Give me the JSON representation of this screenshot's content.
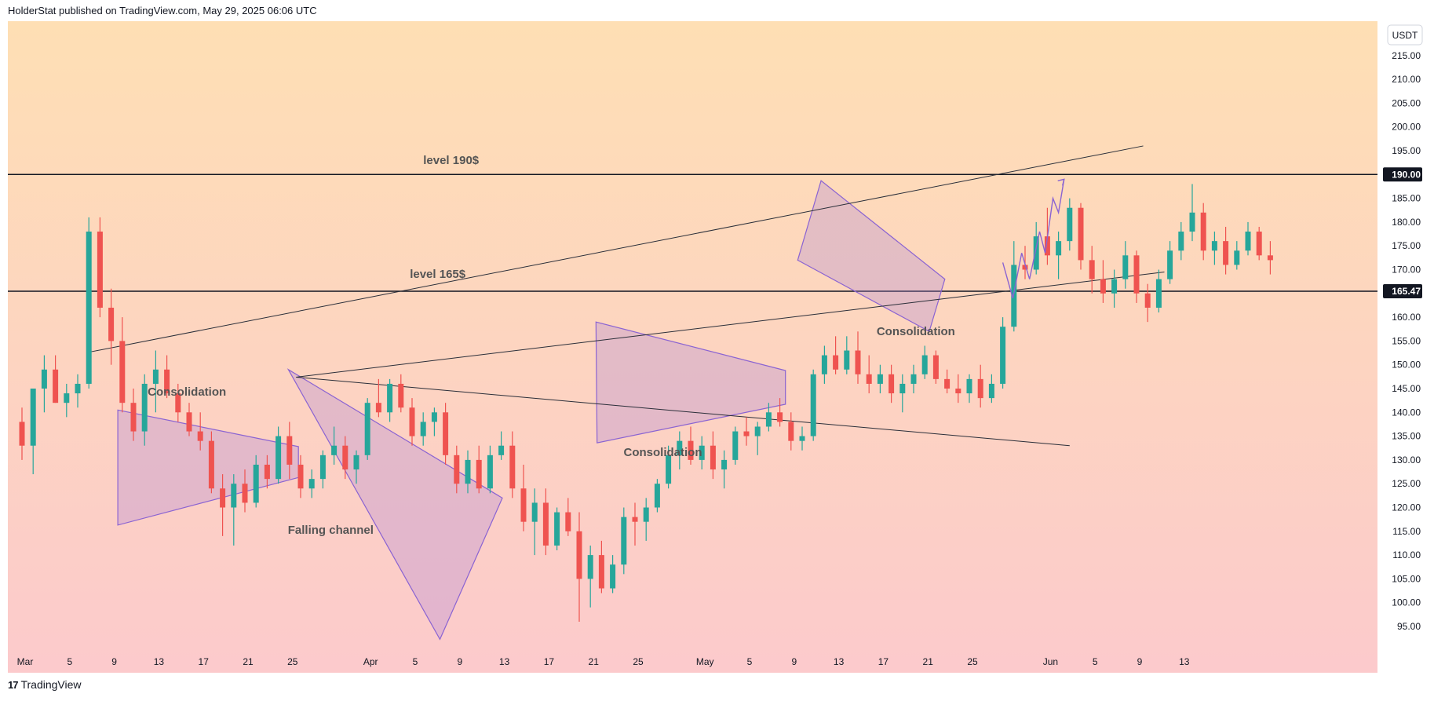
{
  "header": {
    "published": "HolderStat published on TradingView.com, May 29, 2025 06:06 UTC"
  },
  "footer": {
    "logo": "17",
    "brand": "TradingView"
  },
  "colors": {
    "bull": "#26a69a",
    "bear": "#ef5350",
    "shape_fill": "rgba(170,130,215,0.30)",
    "shape_stroke": "#8a63d2",
    "line": "#2a2e39"
  },
  "chart_data": {
    "type": "candlestick",
    "currency": "USDT",
    "y_ticks": [
      95,
      100,
      105,
      110,
      115,
      120,
      125,
      130,
      135,
      140,
      145,
      150,
      155,
      160,
      165,
      170,
      175,
      180,
      185,
      190,
      195,
      200,
      205,
      210,
      215
    ],
    "ylim": [
      91.5,
      218
    ],
    "x_ticks": [
      {
        "label": "Mar",
        "day": 0
      },
      {
        "label": "5",
        "day": 4
      },
      {
        "label": "9",
        "day": 8
      },
      {
        "label": "13",
        "day": 12
      },
      {
        "label": "17",
        "day": 16
      },
      {
        "label": "21",
        "day": 20
      },
      {
        "label": "25",
        "day": 24
      },
      {
        "label": "Apr",
        "day": 31
      },
      {
        "label": "5",
        "day": 35
      },
      {
        "label": "9",
        "day": 39
      },
      {
        "label": "13",
        "day": 43
      },
      {
        "label": "17",
        "day": 47
      },
      {
        "label": "21",
        "day": 51
      },
      {
        "label": "25",
        "day": 55
      },
      {
        "label": "May",
        "day": 61
      },
      {
        "label": "5",
        "day": 65
      },
      {
        "label": "9",
        "day": 69
      },
      {
        "label": "13",
        "day": 73
      },
      {
        "label": "17",
        "day": 77
      },
      {
        "label": "21",
        "day": 81
      },
      {
        "label": "25",
        "day": 85
      },
      {
        "label": "Jun",
        "day": 92
      },
      {
        "label": "5",
        "day": 96
      },
      {
        "label": "9",
        "day": 100
      },
      {
        "label": "13",
        "day": 104
      }
    ],
    "price_labels": [
      {
        "value": 190.0,
        "text": "190.00"
      },
      {
        "value": 165.47,
        "text": "165.47"
      }
    ],
    "horizontal_levels": [
      190.0,
      165.47
    ],
    "level_texts": [
      {
        "text": "level 190$",
        "day": 38.5,
        "price": 192.2
      },
      {
        "text": "level 165$",
        "day": 37.3,
        "price": 168.3
      }
    ],
    "pattern_labels": [
      {
        "text": "Consolidation",
        "day": 14.8,
        "price": 143.5
      },
      {
        "text": "Falling channel",
        "day": 27.7,
        "price": 114.5
      },
      {
        "text": "Consolidation",
        "day": 57.5,
        "price": 130.8
      },
      {
        "text": "Consolidation",
        "day": 80.2,
        "price": 156.2
      }
    ],
    "pattern_shapes": [
      {
        "name": "consolidation-triangle-1",
        "points": [
          [
            8.6,
            140.5
          ],
          [
            24.8,
            132.8
          ],
          [
            24.8,
            126.3
          ],
          [
            8.6,
            116.3
          ]
        ]
      },
      {
        "name": "falling-channel",
        "points": [
          [
            23.9,
            149.0
          ],
          [
            37.5,
            92.3
          ],
          [
            43.1,
            122.0
          ]
        ]
      },
      {
        "name": "consolidation-triangle-2",
        "points": [
          [
            51.5,
            159.0
          ],
          [
            68.5,
            148.8
          ],
          [
            68.5,
            141.7
          ],
          [
            51.6,
            133.6
          ]
        ]
      },
      {
        "name": "consolidation-channel-3",
        "points": [
          [
            69.6,
            172.0
          ],
          [
            71.7,
            188.7
          ],
          [
            82.8,
            168.0
          ],
          [
            81.4,
            157.0
          ]
        ]
      }
    ],
    "trend_lines": [
      {
        "name": "upper-trendline",
        "from": [
          5.9,
          152.6
        ],
        "to": [
          100.6,
          196.0
        ]
      },
      {
        "name": "middle-trendline",
        "from": [
          24.6,
          147.4
        ],
        "to": [
          102.5,
          169.5
        ]
      },
      {
        "name": "lower-trendline",
        "from": [
          24.6,
          147.4
        ],
        "to": [
          94.0,
          133.0
        ]
      }
    ],
    "projection": [
      [
        88.0,
        171.5
      ],
      [
        88.9,
        164.0
      ],
      [
        89.7,
        173.5
      ],
      [
        90.4,
        168.0
      ],
      [
        91.3,
        178.0
      ],
      [
        91.8,
        173.5
      ],
      [
        92.5,
        185.0
      ],
      [
        93.0,
        182.0
      ],
      [
        93.5,
        189.0
      ]
    ],
    "candles": [
      [
        138.0,
        141.0,
        130.0,
        133.0
      ],
      [
        133.0,
        145.0,
        127.0,
        145.0
      ],
      [
        145.0,
        152.0,
        140.0,
        149.0
      ],
      [
        149.0,
        152.0,
        142.0,
        142.0
      ],
      [
        142.0,
        146.0,
        139.0,
        144.0
      ],
      [
        144.0,
        148.0,
        141.0,
        146.0
      ],
      [
        146.0,
        181.0,
        145.0,
        178.0
      ],
      [
        178.0,
        181.0,
        160.0,
        162.0
      ],
      [
        162.0,
        166.0,
        150.0,
        155.0
      ],
      [
        155.0,
        160.0,
        140.0,
        142.0
      ],
      [
        142.0,
        145.0,
        134.0,
        136.0
      ],
      [
        136.0,
        148.0,
        133.0,
        146.0
      ],
      [
        146.0,
        153.0,
        140.0,
        149.0
      ],
      [
        149.0,
        152.0,
        143.0,
        144.0
      ],
      [
        144.0,
        146.0,
        138.0,
        140.0
      ],
      [
        140.0,
        142.0,
        135.0,
        136.0
      ],
      [
        136.0,
        140.0,
        132.0,
        134.0
      ],
      [
        134.0,
        136.0,
        123.0,
        124.0
      ],
      [
        124.0,
        127.0,
        114.0,
        120.0
      ],
      [
        120.0,
        127.0,
        112.0,
        125.0
      ],
      [
        125.0,
        128.0,
        119.0,
        121.0
      ],
      [
        121.0,
        131.0,
        120.0,
        129.0
      ],
      [
        129.0,
        131.0,
        124.0,
        126.0
      ],
      [
        126.0,
        137.0,
        125.0,
        135.0
      ],
      [
        135.0,
        138.0,
        126.0,
        129.0
      ],
      [
        129.0,
        131.0,
        122.0,
        124.0
      ],
      [
        124.0,
        128.0,
        122.0,
        126.0
      ],
      [
        126.0,
        132.0,
        124.0,
        131.0
      ],
      [
        131.0,
        137.0,
        129.0,
        133.0
      ],
      [
        133.0,
        135.0,
        126.0,
        128.0
      ],
      [
        128.0,
        132.0,
        125.0,
        131.0
      ],
      [
        131.0,
        143.0,
        130.0,
        142.0
      ],
      [
        142.0,
        147.0,
        139.0,
        140.0
      ],
      [
        140.0,
        147.0,
        138.0,
        146.0
      ],
      [
        146.0,
        148.0,
        140.0,
        141.0
      ],
      [
        141.0,
        143.0,
        133.0,
        135.0
      ],
      [
        135.0,
        140.0,
        133.0,
        138.0
      ],
      [
        138.0,
        141.0,
        135.0,
        140.0
      ],
      [
        140.0,
        142.0,
        129.0,
        131.0
      ],
      [
        131.0,
        133.0,
        123.0,
        125.0
      ],
      [
        125.0,
        132.0,
        123.0,
        130.0
      ],
      [
        130.0,
        133.0,
        123.0,
        124.0
      ],
      [
        124.0,
        133.0,
        123.0,
        131.0
      ],
      [
        131.0,
        136.0,
        130.0,
        133.0
      ],
      [
        133.0,
        136.0,
        122.0,
        124.0
      ],
      [
        124.0,
        129.0,
        115.0,
        117.0
      ],
      [
        117.0,
        124.0,
        110.0,
        121.0
      ],
      [
        121.0,
        124.0,
        110.0,
        112.0
      ],
      [
        112.0,
        120.0,
        111.0,
        119.0
      ],
      [
        119.0,
        122.0,
        114.0,
        115.0
      ],
      [
        115.0,
        119.0,
        96.0,
        105.0
      ],
      [
        105.0,
        112.0,
        99.0,
        110.0
      ],
      [
        110.0,
        113.0,
        102.0,
        103.0
      ],
      [
        103.0,
        110.0,
        102.0,
        108.0
      ],
      [
        108.0,
        120.0,
        106.0,
        118.0
      ],
      [
        118.0,
        121.0,
        112.0,
        117.0
      ],
      [
        117.0,
        122.0,
        113.0,
        120.0
      ],
      [
        120.0,
        126.0,
        119.0,
        125.0
      ],
      [
        125.0,
        133.0,
        124.0,
        131.0
      ],
      [
        131.0,
        136.0,
        128.0,
        134.0
      ],
      [
        134.0,
        137.0,
        129.0,
        130.0
      ],
      [
        130.0,
        135.0,
        128.0,
        133.0
      ],
      [
        133.0,
        136.0,
        126.0,
        128.0
      ],
      [
        128.0,
        132.0,
        124.0,
        130.0
      ],
      [
        130.0,
        137.0,
        129.0,
        136.0
      ],
      [
        136.0,
        139.0,
        133.0,
        135.0
      ],
      [
        135.0,
        138.0,
        131.0,
        137.0
      ],
      [
        137.0,
        142.0,
        136.0,
        140.0
      ],
      [
        140.0,
        143.0,
        137.0,
        138.0
      ],
      [
        138.0,
        140.0,
        132.0,
        134.0
      ],
      [
        134.0,
        137.0,
        132.0,
        135.0
      ],
      [
        135.0,
        149.0,
        134.0,
        148.0
      ],
      [
        148.0,
        154.0,
        146.0,
        152.0
      ],
      [
        152.0,
        156.0,
        148.0,
        149.0
      ],
      [
        149.0,
        156.0,
        148.0,
        153.0
      ],
      [
        153.0,
        157.0,
        146.0,
        148.0
      ],
      [
        148.0,
        152.0,
        144.0,
        146.0
      ],
      [
        146.0,
        150.0,
        144.0,
        148.0
      ],
      [
        148.0,
        150.0,
        142.0,
        144.0
      ],
      [
        144.0,
        148.0,
        140.0,
        146.0
      ],
      [
        146.0,
        150.0,
        144.0,
        148.0
      ],
      [
        148.0,
        154.0,
        147.0,
        152.0
      ],
      [
        152.0,
        153.0,
        146.0,
        147.0
      ],
      [
        147.0,
        149.0,
        144.0,
        145.0
      ],
      [
        145.0,
        148.0,
        142.0,
        144.0
      ],
      [
        144.0,
        148.0,
        142.0,
        147.0
      ],
      [
        147.0,
        150.0,
        141.0,
        143.0
      ],
      [
        143.0,
        148.0,
        142.0,
        146.0
      ],
      [
        146.0,
        160.0,
        145.0,
        158.0
      ],
      [
        158.0,
        176.0,
        157.0,
        171.0
      ],
      [
        171.0,
        175.0,
        168.0,
        170.0
      ],
      [
        170.0,
        180.0,
        169.0,
        177.0
      ],
      [
        177.0,
        183.0,
        171.0,
        173.0
      ],
      [
        173.0,
        178.0,
        168.0,
        176.0
      ],
      [
        176.0,
        185.0,
        174.0,
        183.0
      ],
      [
        183.0,
        184.0,
        170.0,
        172.0
      ],
      [
        172.0,
        175.0,
        165.0,
        168.0
      ],
      [
        168.0,
        172.0,
        163.0,
        165.0
      ],
      [
        165.0,
        170.0,
        162.0,
        168.0
      ],
      [
        168.0,
        176.0,
        166.0,
        173.0
      ],
      [
        173.0,
        174.0,
        163.0,
        165.0
      ],
      [
        165.0,
        167.0,
        159.0,
        162.0
      ],
      [
        162.0,
        170.0,
        161.0,
        168.0
      ],
      [
        168.0,
        176.0,
        167.0,
        174.0
      ],
      [
        174.0,
        180.0,
        172.0,
        178.0
      ],
      [
        178.0,
        188.0,
        176.0,
        182.0
      ],
      [
        182.0,
        184.0,
        172.0,
        174.0
      ],
      [
        174.0,
        178.0,
        171.0,
        176.0
      ],
      [
        176.0,
        179.0,
        169.0,
        171.0
      ],
      [
        171.0,
        176.0,
        170.0,
        174.0
      ],
      [
        174.0,
        180.0,
        173.0,
        178.0
      ],
      [
        178.0,
        179.0,
        172.0,
        173.0
      ],
      [
        173.0,
        176.0,
        169.0,
        172.0
      ]
    ]
  }
}
